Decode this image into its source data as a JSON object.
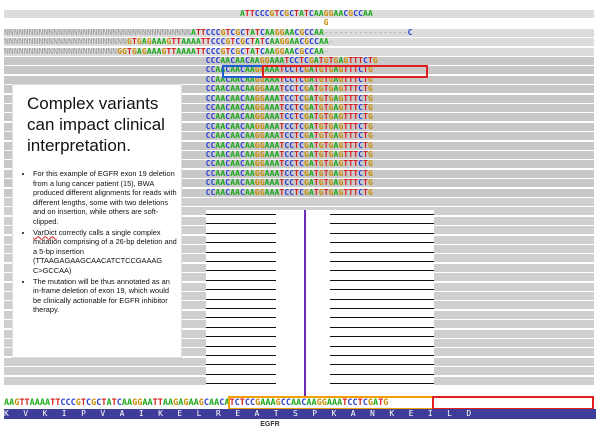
{
  "reads": [
    {
      "text": "                                                ATTCCCGTCGCTATCAAGGAACGCCAA",
      "style": "lgray"
    },
    {
      "text": "                                                                 G",
      "style": "none"
    },
    {
      "text": "NNNNNNNNNNNNNNNNNNNNNNNNNNNNNNNNNNNNNNATTCCCGTCGCTATCAAGGAACGCCAA-----------------C",
      "style": "lgray"
    },
    {
      "text": "NNNNNNNNNNNNNNNNNNNNNNNNNGTGAGAAAGTTAAAATTCCCGTCGCTATCAAGGAACGCCAA-",
      "style": "lgray"
    },
    {
      "text": "NNNNNNNNNNNNNNNNNNNNNNNGGTGAGAAAGTTAAAATTCCCGTCGCTATCAAGGAACGCCAA-",
      "style": "lgray"
    },
    {
      "text": "                                         CCCAACAACAAGGAAATCCTCGATGTGAGTTTCTG",
      "style": "gray"
    },
    {
      "text": "                                         CCAACAACAAGGAAATCCTCGATGTGAGTTTCTG",
      "style": "gray"
    },
    {
      "text": "                                         CCAACAACAAGGAAATCCTCGATGTGAGTTTCTG",
      "style": "gray"
    },
    {
      "text": "                                         CCAACAACAAGGAAATCCTCGATGTGAGTTTCTG",
      "style": "gray"
    },
    {
      "text": "                                         CCAACAACAAGGAAATCCTCGATGTGAGTTTCTG",
      "style": "gray"
    },
    {
      "text": "                                         CCAACAACAAGGAAATCCTCGATGTGAGTTTCTG",
      "style": "gray"
    },
    {
      "text": "                                         CCAACAACAAGGAAATCCTCGATGTGAGTTTCTG",
      "style": "gray"
    },
    {
      "text": "                                         CCAACAACAAGGAAATCCTCGATGTGAGTTTCTG",
      "style": "gray"
    },
    {
      "text": "                                         CCAACAACAAGGAAATCCTCGATGTGAGTTTCTG",
      "style": "gray"
    },
    {
      "text": "                                         CCAACAACAAGGAAATCCTCGATGTGAGTTTCTG",
      "style": "gray"
    },
    {
      "text": "                                         CCAACAACAAGGAAATCCTCGATGTGAGTTTCTG",
      "style": "gray"
    },
    {
      "text": "                                         CCAACAACAAGGAAATCCTCGATGTGAGTTTCTG",
      "style": "gray"
    },
    {
      "text": "                                         CCAACAACAAGGAAATCCTCGATGTGAGTTTCTG",
      "style": "gray"
    },
    {
      "text": "                                         CCAACAACAAGGAAATCCTCGATGTGAGTTTCTG",
      "style": "gray"
    },
    {
      "text": "                                         CCAACAACAAGGAAATCCTCGATGTGAGTTTCTG",
      "style": "gray"
    }
  ],
  "panel": {
    "title": "Complex variants can impact clinical interpretation.",
    "bullets": [
      "For this example of EGFR exon 19 deletion from a lung cancer patient (15), BWA produced different alignments for reads with different lengths, some with two deletions and on insertion, while others are soft-clipped.",
      "VarDict correctly calls a single complex mutation comprising of a 26-bp deletion and a 5-bp insertion (TTAAGAGAAGCAACATCTCCGAAAG C>GCCAA)",
      "The mutation will be thus annotated as an in-frame deletion of exon 19, which would be clinically actionable for EGFR inhibitor therapy."
    ],
    "underlined_word": "VarDict"
  },
  "reference": {
    "sequence": "AAGTTAAAATTCCCGTCGCTATCAAGGAATTAAGAGAAGCAACATCTCCGAAAGCCAACAAGGAAATCCTCGATG",
    "amino_acids": "K   V   K   I   P   V   A   I   K   E   L   R   E   A   T   S   P   K   A   N   K   E   I   L   D",
    "gene": "EGFR"
  },
  "colors": {
    "A": "#1aa81a",
    "C": "#2b3fd6",
    "G": "#c98a00",
    "T": "#d62020",
    "box_blue": "#1f5fd0",
    "box_red": "#e02020",
    "box_orange": "#f0a000"
  }
}
